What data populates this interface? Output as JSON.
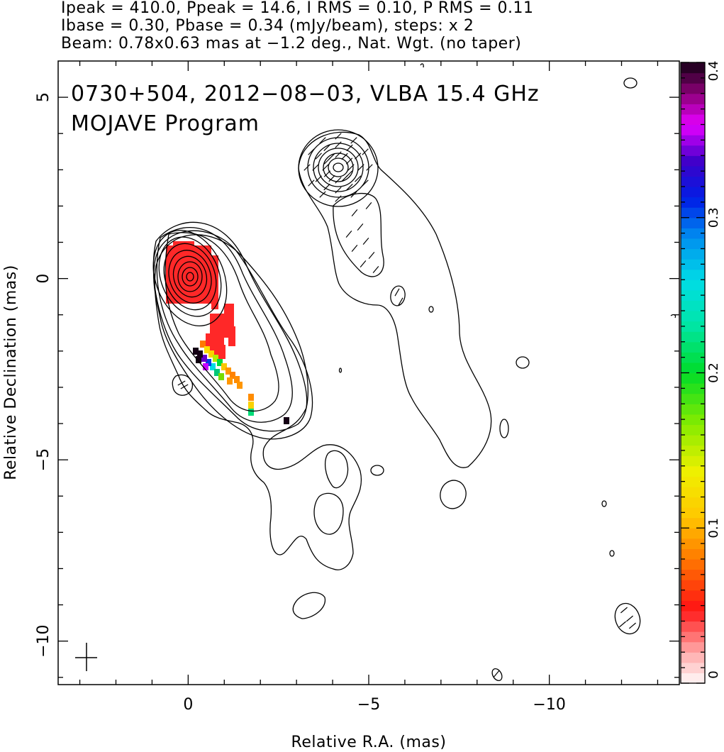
{
  "header": {
    "line1": "Ipeak = 410.0, Ppeak = 14.6, I RMS = 0.10, P RMS = 0.11",
    "line2": "Ibase = 0.30, Pbase = 0.34 (mJy/beam), steps: x 2",
    "line3": "Beam: 0.78x0.63 mas at −1.2 deg., Nat. Wgt. (no taper)"
  },
  "plot": {
    "title_line1": "0730+504, 2012−08−03, VLBA 15.4 GHz",
    "title_line2": "MOJAVE Program"
  },
  "chart_data": {
    "type": "heatmap",
    "xlabel": "Relative R.A. (mas)",
    "ylabel": "Relative Declination (mas)",
    "xlim": [
      3.6,
      -13.6
    ],
    "ylim": [
      -11.2,
      6.0
    ],
    "x_ticks": [
      0,
      -5,
      -10
    ],
    "x_tick_labels": [
      "0",
      "−5",
      "−10"
    ],
    "y_ticks": [
      5,
      0,
      -5,
      -10
    ],
    "y_tick_labels": [
      "5",
      "0",
      "−5",
      "−10"
    ],
    "colorbar": {
      "range": [
        0,
        0.4
      ],
      "ticks": [
        0,
        0.1,
        0.2,
        0.3,
        0.4
      ],
      "tick_labels": [
        "0",
        "0.1",
        "0.2",
        "0.3",
        "0.4"
      ]
    },
    "core_position": [
      0,
      0
    ],
    "secondary_component_position": [
      -4.2,
      3.0
    ]
  }
}
